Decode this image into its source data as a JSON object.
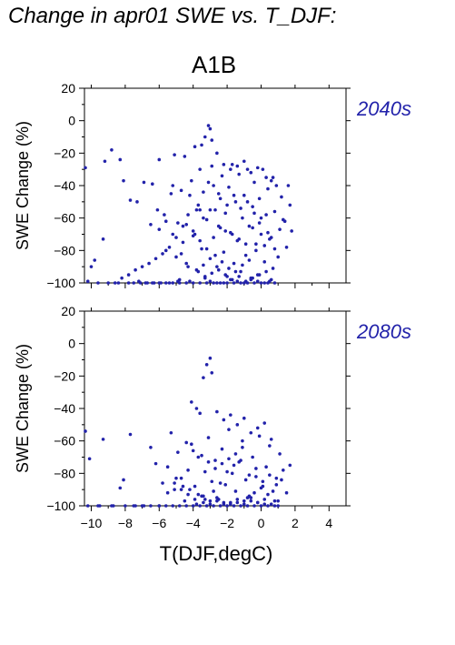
{
  "title": "Change in apr01 SWE vs. T_DJF:",
  "scenario": "A1B",
  "colors": {
    "points": "#2222aa",
    "period_label": "#2222aa",
    "axis": "#000000"
  },
  "chart_data": [
    {
      "type": "scatter",
      "period": "2040s",
      "ylabel": "SWE Change (%)",
      "xlabel": "",
      "xlim": [
        -10.4,
        5
      ],
      "ylim": [
        -100,
        20
      ],
      "xticks": [
        -10,
        -8,
        -6,
        -4,
        -2,
        0,
        2,
        4
      ],
      "yticks": [
        -100,
        -80,
        -60,
        -40,
        -20,
        0,
        20
      ],
      "ytick_labels": [
        "−100",
        "−80",
        "−60",
        "−40",
        "−20",
        "0",
        "20"
      ],
      "xtick_labels_shown": false,
      "points_x": [
        -10.4,
        -10.0,
        -9.8,
        -9.3,
        -9.2,
        -8.8,
        -8.6,
        -8.3,
        -8.1,
        -7.7,
        -7.5,
        -7.3,
        -7.1,
        -6.9,
        -6.7,
        -6.5,
        -6.4,
        -6.3,
        -6.1,
        -6.0,
        -5.9,
        -5.7,
        -5.6,
        -5.4,
        -5.3,
        -5.2,
        -5.1,
        -5.0,
        -4.9,
        -4.8,
        -4.7,
        -4.6,
        -4.5,
        -4.4,
        -4.3,
        -4.2,
        -4.1,
        -4.0,
        -3.9,
        -3.8,
        -3.7,
        -3.6,
        -3.5,
        -3.4,
        -3.3,
        -3.2,
        -3.1,
        -3.0,
        -2.9,
        -2.8,
        -2.7,
        -2.6,
        -2.5,
        -2.4,
        -2.3,
        -2.2,
        -2.1,
        -2.0,
        -1.9,
        -1.8,
        -1.7,
        -1.6,
        -1.5,
        -1.4,
        -1.3,
        -1.2,
        -1.1,
        -1.0,
        -0.9,
        -0.8,
        -0.7,
        -0.6,
        -0.5,
        -0.4,
        -0.3,
        -0.2,
        -0.1,
        0.0,
        0.1,
        0.2,
        0.3,
        0.4,
        0.5,
        0.6,
        0.7,
        0.8,
        1.0,
        1.2,
        1.4,
        1.5,
        1.6,
        1.7,
        1.8,
        -3.1,
        -3.0,
        -3.3,
        -2.9,
        -3.5,
        -2.6,
        -2.2,
        -1.8,
        -1.4,
        -1.0,
        -0.6,
        -0.2,
        0.3,
        0.6,
        0.9,
        -2.8,
        -2.4,
        -2.0,
        -1.6,
        -1.2,
        -0.8,
        -0.4,
        0.0,
        -4.2,
        -3.8,
        -3.4,
        -4.6,
        -5.0,
        -5.4,
        -5.8,
        -6.2,
        -6.6,
        -7.0,
        -7.4,
        -7.8,
        -8.2,
        -4.9,
        -4.4,
        -3.9,
        -3.6,
        -3.2,
        -2.7,
        -2.3,
        -1.9,
        -1.5,
        -1.1,
        -0.7,
        -0.3,
        0.2,
        0.5,
        1.1,
        1.3,
        -3.0,
        -2.5,
        -2.1,
        -1.7,
        -1.3,
        -0.9,
        -0.5,
        -0.1,
        0.4,
        0.8,
        -4.0,
        -3.6,
        -5.2,
        -5.6,
        -6.0,
        -4.7,
        -4.3,
        -3.7,
        -3.3,
        -2.9,
        -2.5,
        -2.1,
        -1.7,
        -1.3,
        -0.9,
        -0.5,
        -0.1,
        0.3,
        0.7,
        -3.4,
        -3.0,
        -2.6,
        -2.2,
        -1.8,
        -1.4,
        -1.0,
        -0.6,
        -0.2,
        0.2,
        0.6,
        -10.2,
        -9.6,
        -9.0,
        -8.4,
        -7.8,
        -7.2,
        -6.8,
        -6.4,
        -6.0,
        -5.6,
        -5.2,
        -4.8,
        -4.4,
        -4.0,
        -3.6,
        -3.2,
        -2.8,
        -2.4,
        -2.0,
        -1.6,
        -1.2,
        -0.8,
        -0.4,
        0.0,
        0.4,
        0.8
      ],
      "points_y": [
        -29,
        -90,
        -86,
        -73,
        -25,
        -18,
        -100,
        -24,
        -37,
        -49,
        -100,
        -50,
        -100,
        -38,
        -100,
        -64,
        -39,
        -100,
        -55,
        -24,
        -100,
        -58,
        -62,
        -100,
        -45,
        -70,
        -21,
        -84,
        -63,
        -98,
        -43,
        -75,
        -22,
        -88,
        -58,
        -99,
        -37,
        -68,
        -16,
        -92,
        -52,
        -30,
        -79,
        -44,
        -97,
        -61,
        -38,
        -85,
        -28,
        -72,
        -55,
        -90,
        -45,
        -66,
        -34,
        -81,
        -57,
        -96,
        -41,
        -69,
        -27,
        -88,
        -50,
        -74,
        -33,
        -93,
        -60,
        -46,
        -83,
        -30,
        -65,
        -97,
        -53,
        -38,
        -76,
        -95,
        -48,
        -70,
        -30,
        -87,
        -58,
        -42,
        -99,
        -72,
        -35,
        -56,
        -84,
        -47,
        -62,
        -78,
        -40,
        -52,
        -68,
        -3,
        -5,
        -10,
        -12,
        -15,
        -20,
        -27,
        -30,
        -28,
        -25,
        -32,
        -29,
        -35,
        -37,
        -40,
        -40,
        -48,
        -52,
        -46,
        -54,
        -50,
        -57,
        -60,
        -46,
        -55,
        -60,
        -65,
        -72,
        -78,
        -82,
        -85,
        -88,
        -90,
        -92,
        -95,
        -97,
        -99,
        -64,
        -70,
        -74,
        -79,
        -83,
        -87,
        -91,
        -93,
        -89,
        -86,
        -80,
        -77,
        -73,
        -67,
        -61,
        -55,
        -65,
        -68,
        -70,
        -73,
        -76,
        -66,
        -63,
        -69,
        -79,
        -71,
        -55,
        -40,
        -80,
        -67,
        -82,
        -90,
        -93,
        -96,
        -94,
        -92,
        -95,
        -98,
        -96,
        -99,
        -97,
        -95,
        -93,
        -91,
        -89,
        -99,
        -100,
        -100,
        -98,
        -99,
        -100,
        -98,
        -99,
        -100,
        -98,
        -99,
        -100,
        -100,
        -100,
        -100,
        -99,
        -100,
        -100,
        -100,
        -100,
        -100,
        -100,
        -100,
        -100,
        -100,
        -100,
        -100,
        -100,
        -100,
        -100,
        -100,
        -100,
        -100,
        -100,
        -100,
        -100,
        -100,
        -100,
        -100,
        -100
      ]
    },
    {
      "type": "scatter",
      "period": "2080s",
      "ylabel": "SWE Change (%)",
      "xlabel": "T(DJF,degC)",
      "xlim": [
        -10.4,
        5
      ],
      "ylim": [
        -100,
        20
      ],
      "xticks": [
        -10,
        -8,
        -6,
        -4,
        -2,
        0,
        2,
        4
      ],
      "xtick_labels": [
        "−10",
        "−8",
        "−6",
        "−4",
        "−2",
        "0",
        "2",
        "4"
      ],
      "yticks": [
        -100,
        -80,
        -60,
        -40,
        -20,
        0,
        20
      ],
      "ytick_labels": [
        "−100",
        "−80",
        "−60",
        "−40",
        "−20",
        "0",
        "20"
      ],
      "points_x": [
        -10.4,
        -10.1,
        -9.6,
        -9.3,
        -8.7,
        -8.3,
        -8.1,
        -7.7,
        -7.4,
        -6.9,
        -6.5,
        -6.2,
        -6.0,
        -5.8,
        -5.5,
        -5.3,
        -5.1,
        -4.9,
        -4.7,
        -4.5,
        -4.3,
        -4.1,
        -3.9,
        -3.7,
        -3.5,
        -3.3,
        -3.1,
        -2.9,
        -2.7,
        -2.5,
        -2.3,
        -2.1,
        -1.9,
        -1.7,
        -1.5,
        -1.3,
        -1.1,
        -0.9,
        -0.7,
        -0.5,
        -0.3,
        -0.1,
        0.1,
        0.3,
        0.5,
        0.7,
        0.9,
        1.1,
        1.3,
        1.5,
        1.7,
        -3.0,
        -3.2,
        -2.9,
        -3.4,
        -4.1,
        -3.8,
        -3.6,
        -2.6,
        -2.2,
        -1.8,
        -1.4,
        -1.0,
        -0.6,
        -0.2,
        0.2,
        0.6,
        -4.4,
        -4.0,
        -3.5,
        -3.1,
        -2.7,
        -2.3,
        -1.9,
        -1.5,
        -1.1,
        -0.7,
        -0.3,
        0.1,
        0.5,
        0.9,
        -5.0,
        -4.6,
        -4.2,
        -3.7,
        -3.3,
        -2.8,
        -2.4,
        -2.0,
        -1.6,
        -1.2,
        -0.8,
        -0.4,
        0.0,
        0.4,
        0.8,
        1.2,
        -5.5,
        -5.1,
        -4.7,
        -4.3,
        -3.9,
        -3.4,
        -3.0,
        -2.6,
        -2.2,
        -1.8,
        -1.4,
        -1.0,
        -0.6,
        -0.2,
        0.2,
        0.6,
        1.0,
        -10.2,
        -9.5,
        -8.8,
        -8.0,
        -7.5,
        -7.0,
        -6.5,
        -6.0,
        -5.6,
        -5.2,
        -4.8,
        -4.4,
        -4.0,
        -3.6,
        -3.2,
        -2.8,
        -2.4,
        -2.0,
        -1.6,
        -1.2,
        -0.8,
        -0.4,
        0.0,
        0.4,
        0.8,
        1.0,
        -3.8,
        -3.4,
        -3.0,
        -2.6,
        -2.2,
        -1.8,
        -1.4,
        -1.0,
        -0.6,
        -0.2,
        0.2
      ],
      "points_y": [
        -54,
        -71,
        -100,
        -59,
        -100,
        -89,
        -84,
        -56,
        -100,
        -100,
        -64,
        -74,
        -100,
        -86,
        -76,
        -55,
        -90,
        -67,
        -83,
        -97,
        -78,
        -62,
        -88,
        -70,
        -94,
        -79,
        -58,
        -85,
        -72,
        -96,
        -65,
        -87,
        -53,
        -80,
        -91,
        -73,
        -60,
        -84,
        -94,
        -70,
        -82,
        -57,
        -88,
        -76,
        -63,
        -91,
        -83,
        -68,
        -78,
        -92,
        -75,
        -9,
        -13,
        -18,
        -21,
        -36,
        -40,
        -43,
        -42,
        -47,
        -44,
        -50,
        -46,
        -55,
        -52,
        -49,
        -59,
        -61,
        -66,
        -69,
        -73,
        -77,
        -74,
        -71,
        -68,
        -64,
        -81,
        -77,
        -85,
        -81,
        -87,
        -83,
        -88,
        -90,
        -93,
        -96,
        -91,
        -86,
        -79,
        -75,
        -72,
        -95,
        -92,
        -89,
        -93,
        -97,
        -84,
        -92,
        -86,
        -90,
        -93,
        -96,
        -94,
        -97,
        -95,
        -99,
        -98,
        -96,
        -97,
        -95,
        -98,
        -96,
        -99,
        -97,
        -100,
        -100,
        -100,
        -100,
        -100,
        -100,
        -100,
        -100,
        -100,
        -100,
        -100,
        -100,
        -100,
        -100,
        -100,
        -100,
        -100,
        -100,
        -100,
        -100,
        -100,
        -100,
        -100,
        -100,
        -100,
        -100,
        -99,
        -98,
        -99,
        -97,
        -98,
        -99,
        -98,
        -99,
        -97,
        -98,
        -99
      ]
    }
  ]
}
